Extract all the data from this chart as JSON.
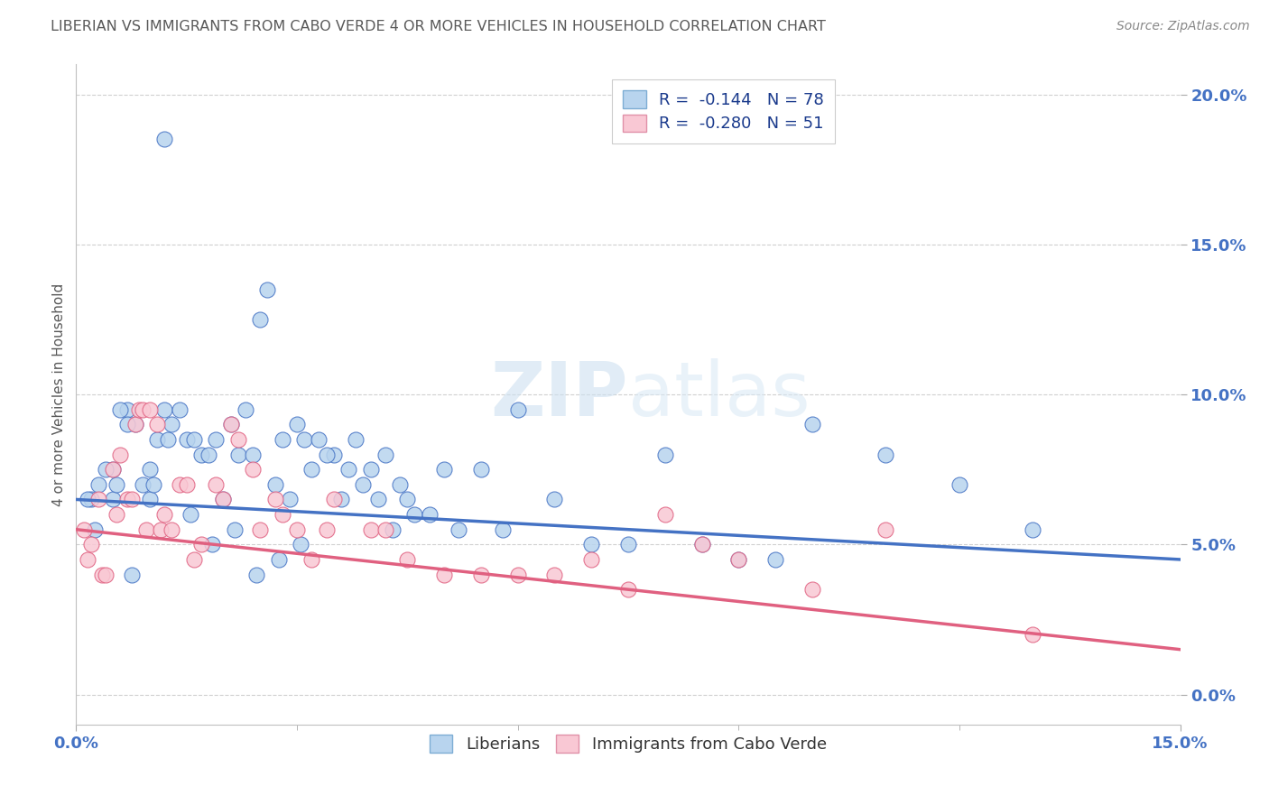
{
  "title": "LIBERIAN VS IMMIGRANTS FROM CABO VERDE 4 OR MORE VEHICLES IN HOUSEHOLD CORRELATION CHART",
  "source": "Source: ZipAtlas.com",
  "ylabel": "4 or more Vehicles in Household",
  "ytick_vals": [
    0.0,
    5.0,
    10.0,
    15.0,
    20.0
  ],
  "xmin": 0.0,
  "xmax": 15.0,
  "ymin": -1.0,
  "ymax": 21.0,
  "legend1_label": "R =  -0.144   N = 78",
  "legend2_label": "R =  -0.280   N = 51",
  "legend1_color": "#b8d4ee",
  "legend2_color": "#f9c8d4",
  "scatter1_color": "#b8d4ee",
  "scatter2_color": "#f9c8d4",
  "line1_color": "#4472c4",
  "line2_color": "#e06080",
  "watermark": "ZIPatlas",
  "title_color": "#595959",
  "axis_label_color": "#4472c4",
  "line1_start_y": 6.5,
  "line1_end_y": 4.5,
  "line2_start_y": 5.5,
  "line2_end_y": 1.5,
  "blue_x": [
    1.2,
    0.3,
    0.5,
    0.5,
    0.7,
    0.8,
    0.9,
    1.0,
    1.0,
    1.1,
    1.2,
    1.3,
    1.5,
    1.6,
    1.7,
    2.0,
    2.1,
    2.3,
    2.5,
    2.6,
    2.8,
    3.0,
    3.1,
    3.3,
    3.5,
    3.8,
    4.0,
    4.2,
    4.5,
    5.0,
    5.5,
    6.0,
    0.2,
    0.4,
    0.6,
    0.7,
    1.4,
    1.8,
    1.9,
    2.2,
    2.4,
    2.7,
    2.9,
    3.2,
    3.4,
    3.6,
    3.7,
    3.9,
    4.1,
    4.3,
    4.4,
    4.6,
    4.8,
    5.2,
    5.8,
    6.5,
    7.0,
    7.5,
    8.0,
    8.5,
    9.0,
    9.5,
    10.0,
    11.0,
    12.0,
    13.0,
    0.15,
    0.25,
    0.55,
    0.75,
    1.05,
    1.25,
    1.55,
    1.85,
    2.15,
    2.45,
    2.75,
    3.05
  ],
  "blue_y": [
    18.5,
    7.0,
    6.5,
    7.5,
    9.5,
    9.0,
    7.0,
    7.5,
    6.5,
    8.5,
    9.5,
    9.0,
    8.5,
    8.5,
    8.0,
    6.5,
    9.0,
    9.5,
    12.5,
    13.5,
    8.5,
    9.0,
    8.5,
    8.5,
    8.0,
    8.5,
    7.5,
    8.0,
    6.5,
    7.5,
    7.5,
    9.5,
    6.5,
    7.5,
    9.5,
    9.0,
    9.5,
    8.0,
    8.5,
    8.0,
    8.0,
    7.0,
    6.5,
    7.5,
    8.0,
    6.5,
    7.5,
    7.0,
    6.5,
    5.5,
    7.0,
    6.0,
    6.0,
    5.5,
    5.5,
    6.5,
    5.0,
    5.0,
    8.0,
    5.0,
    4.5,
    4.5,
    9.0,
    8.0,
    7.0,
    5.5,
    6.5,
    5.5,
    7.0,
    4.0,
    7.0,
    8.5,
    6.0,
    5.0,
    5.5,
    4.0,
    4.5,
    5.0
  ],
  "pink_x": [
    0.1,
    0.15,
    0.2,
    0.3,
    0.35,
    0.4,
    0.5,
    0.55,
    0.6,
    0.7,
    0.75,
    0.8,
    0.85,
    0.9,
    0.95,
    1.0,
    1.1,
    1.15,
    1.2,
    1.3,
    1.4,
    1.5,
    1.6,
    1.7,
    1.9,
    2.0,
    2.1,
    2.2,
    2.4,
    2.5,
    2.7,
    2.8,
    3.0,
    3.2,
    3.4,
    3.5,
    4.0,
    4.2,
    4.5,
    5.0,
    5.5,
    6.0,
    6.5,
    7.0,
    7.5,
    8.0,
    8.5,
    9.0,
    10.0,
    11.0,
    13.0
  ],
  "pink_y": [
    5.5,
    4.5,
    5.0,
    6.5,
    4.0,
    4.0,
    7.5,
    6.0,
    8.0,
    6.5,
    6.5,
    9.0,
    9.5,
    9.5,
    5.5,
    9.5,
    9.0,
    5.5,
    6.0,
    5.5,
    7.0,
    7.0,
    4.5,
    5.0,
    7.0,
    6.5,
    9.0,
    8.5,
    7.5,
    5.5,
    6.5,
    6.0,
    5.5,
    4.5,
    5.5,
    6.5,
    5.5,
    5.5,
    4.5,
    4.0,
    4.0,
    4.0,
    4.0,
    4.5,
    3.5,
    6.0,
    5.0,
    4.5,
    3.5,
    5.5,
    2.0
  ]
}
